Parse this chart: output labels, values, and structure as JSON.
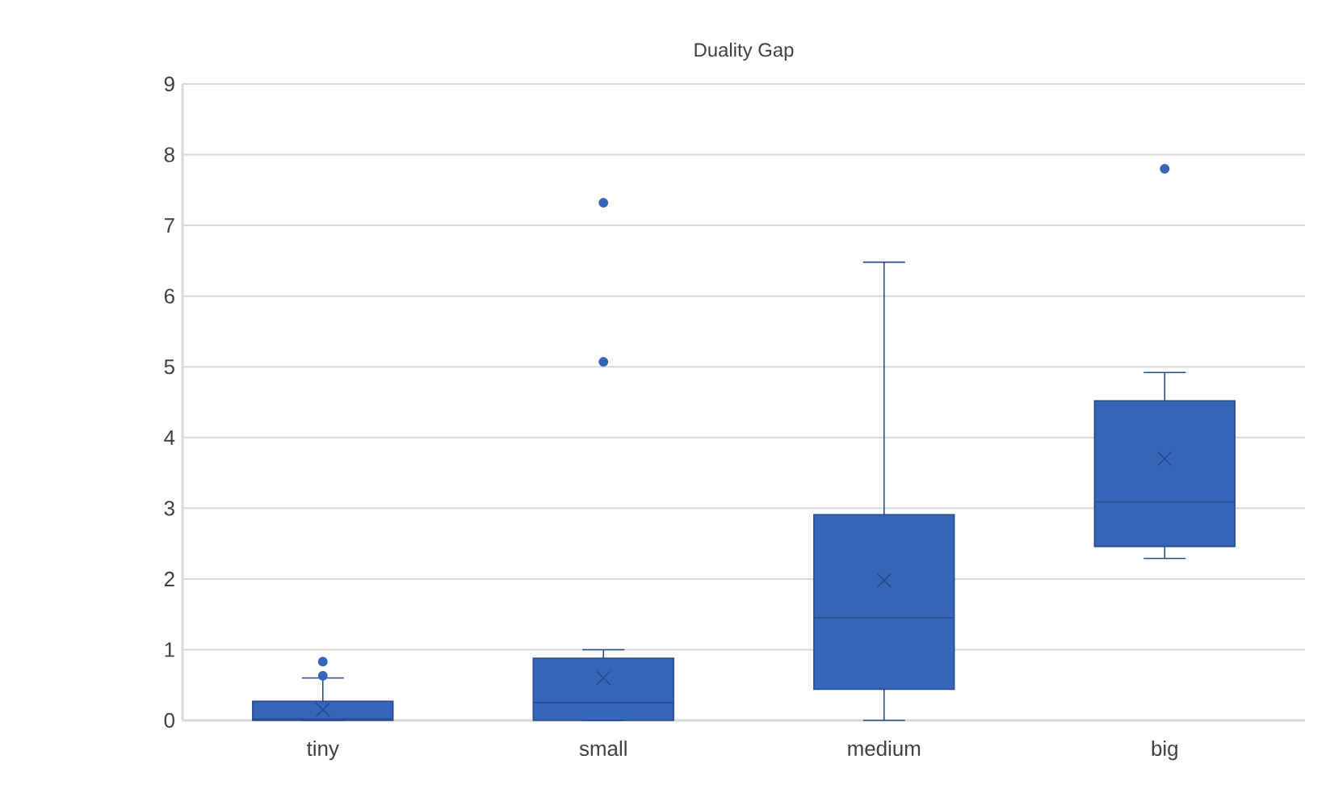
{
  "chart_data": {
    "type": "box",
    "title": "Duality Gap",
    "categories": [
      "tiny",
      "small",
      "medium",
      "big"
    ],
    "boxes": [
      {
        "low": 0,
        "q1": 0,
        "median": 0.02,
        "q3": 0.27,
        "high": 0.6,
        "mean": 0.15,
        "outliers": [
          0.63,
          0.83
        ]
      },
      {
        "low": 0,
        "q1": 0,
        "median": 0.25,
        "q3": 0.88,
        "high": 1.0,
        "mean": 0.6,
        "outliers": [
          5.07,
          7.32
        ]
      },
      {
        "low": 0,
        "q1": 0.44,
        "median": 1.45,
        "q3": 2.91,
        "high": 6.48,
        "mean": 1.98
      },
      {
        "low": 2.29,
        "q1": 2.46,
        "median": 3.09,
        "q3": 4.52,
        "high": 4.92,
        "mean": 3.7,
        "outliers": [
          7.8
        ]
      }
    ],
    "color": "#3566ba",
    "ylim": [
      0,
      9
    ],
    "yticks": [
      0,
      1,
      2,
      3,
      4,
      5,
      6,
      7,
      8,
      9
    ],
    "grid": "y"
  }
}
